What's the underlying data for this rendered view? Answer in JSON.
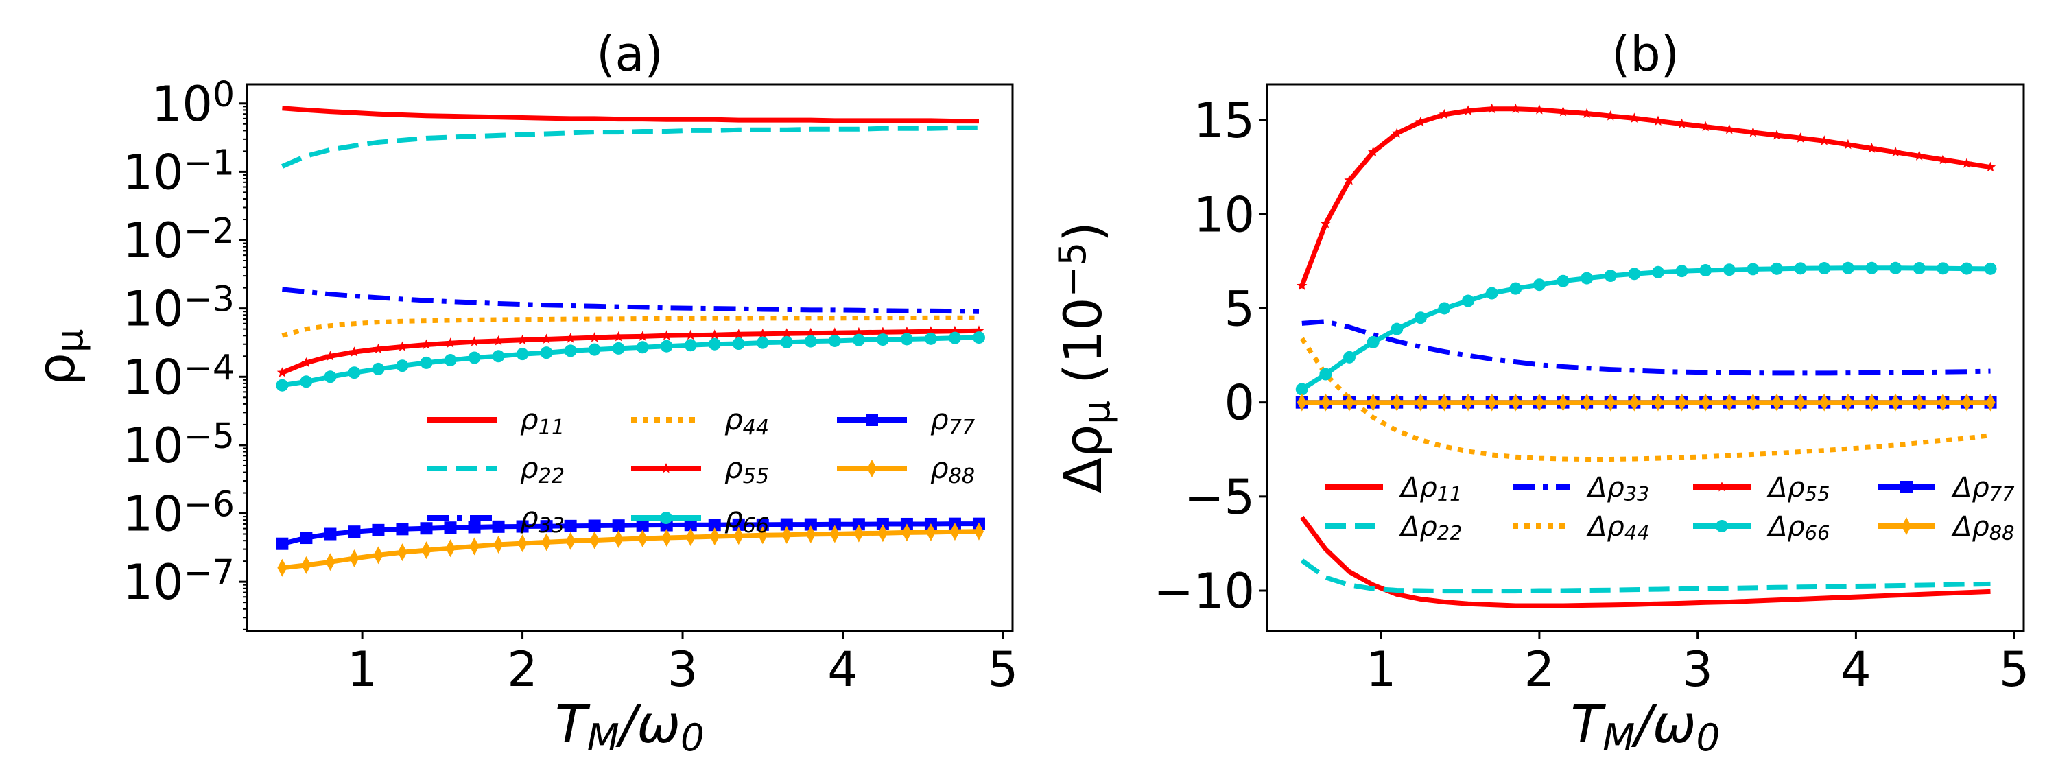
{
  "colors": {
    "red": "#ff0000",
    "cyan": "#00cccc",
    "blue": "#0000ff",
    "orange": "#ffa500"
  },
  "chart_data": [
    {
      "type": "line",
      "title": "(a)",
      "xlabel": "T_{M}/ω_{0}",
      "ylabel": "ρ_{μ}",
      "yscale": "log",
      "xlim": [
        0.28,
        5.06
      ],
      "ylim": [
        1.9e-08,
        1.9
      ],
      "xticks": [
        1,
        2,
        3,
        4,
        5
      ],
      "xtick_labels": [
        "1",
        "2",
        "3",
        "4",
        "5"
      ],
      "yticks": [
        1,
        0.1,
        0.01,
        0.001,
        0.0001,
        1e-05,
        1e-06,
        1e-07
      ],
      "ytick_labels": [
        "10^{0}",
        "10^{−1}",
        "10^{−2}",
        "10^{−3}",
        "10^{−4}",
        "10^{−5}",
        "10^{−6}",
        "10^{−7}"
      ],
      "legend": {
        "placement": "lower-right",
        "columns": 3
      },
      "x": [
        0.5,
        0.65,
        0.8,
        0.95,
        1.1,
        1.25,
        1.4,
        1.55,
        1.7,
        1.85,
        2.0,
        2.15,
        2.3,
        2.45,
        2.6,
        2.75,
        2.9,
        3.05,
        3.2,
        3.35,
        3.5,
        3.65,
        3.8,
        3.95,
        4.1,
        4.25,
        4.4,
        4.55,
        4.7,
        4.85
      ],
      "series": [
        {
          "name": "ρ_{11}",
          "color": "red",
          "style": "solid",
          "marker": "none",
          "values": [
            0.85,
            0.8,
            0.76,
            0.73,
            0.7,
            0.68,
            0.66,
            0.65,
            0.64,
            0.63,
            0.62,
            0.61,
            0.6,
            0.6,
            0.59,
            0.59,
            0.58,
            0.58,
            0.58,
            0.57,
            0.57,
            0.57,
            0.57,
            0.56,
            0.56,
            0.56,
            0.56,
            0.56,
            0.55,
            0.55
          ]
        },
        {
          "name": "ρ_{22}",
          "color": "cyan",
          "style": "dashed",
          "marker": "none",
          "values": [
            0.12,
            0.17,
            0.21,
            0.24,
            0.27,
            0.29,
            0.31,
            0.32,
            0.33,
            0.34,
            0.35,
            0.36,
            0.37,
            0.38,
            0.38,
            0.39,
            0.39,
            0.4,
            0.4,
            0.41,
            0.41,
            0.41,
            0.42,
            0.42,
            0.42,
            0.43,
            0.43,
            0.43,
            0.44,
            0.44
          ]
        },
        {
          "name": "ρ_{33}",
          "color": "blue",
          "style": "dashdot",
          "marker": "none",
          "values": [
            0.0019,
            0.00175,
            0.00162,
            0.00152,
            0.00144,
            0.00137,
            0.00131,
            0.00126,
            0.00122,
            0.00118,
            0.00115,
            0.00112,
            0.0011,
            0.00108,
            0.00106,
            0.00104,
            0.00102,
            0.00101,
            0.001,
            0.00099,
            0.00097,
            0.00096,
            0.00095,
            0.00095,
            0.00094,
            0.00093,
            0.00092,
            0.00092,
            0.00091,
            0.0009
          ]
        },
        {
          "name": "ρ_{44}",
          "color": "orange",
          "style": "dotted",
          "marker": "none",
          "values": [
            0.0004,
            0.0005,
            0.00056,
            0.0006,
            0.00063,
            0.00065,
            0.00066,
            0.00067,
            0.00068,
            0.000685,
            0.00069,
            0.000695,
            0.0007,
            0.0007,
            0.000705,
            0.00071,
            0.00071,
            0.00071,
            0.000715,
            0.000715,
            0.00072,
            0.00072,
            0.00072,
            0.00072,
            0.000725,
            0.000725,
            0.000725,
            0.00073,
            0.00073,
            0.00073
          ]
        },
        {
          "name": "ρ_{55}",
          "color": "red",
          "style": "solid",
          "marker": "star",
          "values": [
            0.000115,
            0.00016,
            0.0002,
            0.00023,
            0.000255,
            0.000275,
            0.000295,
            0.00031,
            0.000325,
            0.000335,
            0.000345,
            0.000355,
            0.000365,
            0.000375,
            0.000385,
            0.00039,
            0.0004,
            0.000405,
            0.00041,
            0.00042,
            0.000425,
            0.00043,
            0.000435,
            0.00044,
            0.000445,
            0.00045,
            0.000455,
            0.00046,
            0.000465,
            0.00047
          ]
        },
        {
          "name": "ρ_{66}",
          "color": "cyan",
          "style": "solid",
          "marker": "circle",
          "values": [
            7.5e-05,
            8.5e-05,
            0.0001,
            0.000115,
            0.00013,
            0.000145,
            0.00016,
            0.000175,
            0.00019,
            0.0002,
            0.000215,
            0.000225,
            0.00024,
            0.00025,
            0.00026,
            0.00027,
            0.00028,
            0.00029,
            0.0003,
            0.000305,
            0.000315,
            0.00032,
            0.00033,
            0.000335,
            0.000345,
            0.00035,
            0.000355,
            0.00036,
            0.00037,
            0.000375
          ]
        },
        {
          "name": "ρ_{77}",
          "color": "blue",
          "style": "solid",
          "marker": "square",
          "values": [
            3.6e-07,
            4.4e-07,
            5e-07,
            5.4e-07,
            5.7e-07,
            5.9e-07,
            6.05e-07,
            6.2e-07,
            6.3e-07,
            6.4e-07,
            6.45e-07,
            6.5e-07,
            6.55e-07,
            6.6e-07,
            6.65e-07,
            6.7e-07,
            6.75e-07,
            6.8e-07,
            6.8e-07,
            6.85e-07,
            6.85e-07,
            6.9e-07,
            6.9e-07,
            6.95e-07,
            6.95e-07,
            7e-07,
            7e-07,
            7e-07,
            7.05e-07,
            7.05e-07
          ]
        },
        {
          "name": "ρ_{88}",
          "color": "orange",
          "style": "solid",
          "marker": "thin_diamond",
          "values": [
            1.6e-07,
            1.75e-07,
            1.95e-07,
            2.2e-07,
            2.45e-07,
            2.7e-07,
            2.9e-07,
            3.1e-07,
            3.3e-07,
            3.5e-07,
            3.65e-07,
            3.8e-07,
            3.95e-07,
            4.05e-07,
            4.2e-07,
            4.3e-07,
            4.4e-07,
            4.5e-07,
            4.6e-07,
            4.7e-07,
            4.8e-07,
            4.85e-07,
            4.95e-07,
            5e-07,
            5.1e-07,
            5.15e-07,
            5.25e-07,
            5.3e-07,
            5.4e-07,
            5.45e-07
          ]
        }
      ]
    },
    {
      "type": "line",
      "title": "(b)",
      "xlabel": "T_{M}/ω_{0}",
      "ylabel": "Δρ_{μ} (10^{−5})",
      "yscale": "linear",
      "xlim": [
        0.28,
        5.06
      ],
      "ylim": [
        -12.15,
        16.9
      ],
      "xticks": [
        1,
        2,
        3,
        4,
        5
      ],
      "xtick_labels": [
        "1",
        "2",
        "3",
        "4",
        "5"
      ],
      "yticks": [
        15,
        10,
        5,
        0,
        -5,
        -10
      ],
      "ytick_labels": [
        "15",
        "10",
        "5",
        "0",
        "−5",
        "−10"
      ],
      "legend": {
        "placement": "lower-center",
        "columns": 4
      },
      "x": [
        0.5,
        0.65,
        0.8,
        0.95,
        1.1,
        1.25,
        1.4,
        1.55,
        1.7,
        1.85,
        2.0,
        2.15,
        2.3,
        2.45,
        2.6,
        2.75,
        2.9,
        3.05,
        3.2,
        3.35,
        3.5,
        3.65,
        3.8,
        3.95,
        4.1,
        4.25,
        4.4,
        4.55,
        4.7,
        4.85
      ],
      "series": [
        {
          "name": "Δρ_{11}",
          "color": "red",
          "style": "solid",
          "marker": "none",
          "values": [
            -6.1,
            -7.8,
            -9.0,
            -9.7,
            -10.2,
            -10.45,
            -10.6,
            -10.7,
            -10.75,
            -10.8,
            -10.8,
            -10.8,
            -10.78,
            -10.76,
            -10.74,
            -10.7,
            -10.67,
            -10.63,
            -10.6,
            -10.55,
            -10.5,
            -10.45,
            -10.4,
            -10.35,
            -10.3,
            -10.25,
            -10.2,
            -10.15,
            -10.1,
            -10.05
          ]
        },
        {
          "name": "Δρ_{22}",
          "color": "cyan",
          "style": "dashed",
          "marker": "none",
          "values": [
            -8.4,
            -9.3,
            -9.7,
            -9.9,
            -9.98,
            -10.0,
            -10.02,
            -10.02,
            -10.02,
            -10.02,
            -10.0,
            -10.0,
            -9.98,
            -9.97,
            -9.95,
            -9.93,
            -9.91,
            -9.89,
            -9.87,
            -9.85,
            -9.83,
            -9.81,
            -9.79,
            -9.77,
            -9.75,
            -9.73,
            -9.71,
            -9.69,
            -9.67,
            -9.65
          ]
        },
        {
          "name": "Δρ_{33}",
          "color": "blue",
          "style": "dashdot",
          "marker": "none",
          "values": [
            4.2,
            4.3,
            4.0,
            3.6,
            3.25,
            2.95,
            2.7,
            2.5,
            2.3,
            2.15,
            2.0,
            1.9,
            1.82,
            1.75,
            1.7,
            1.65,
            1.62,
            1.6,
            1.58,
            1.57,
            1.56,
            1.56,
            1.56,
            1.57,
            1.58,
            1.59,
            1.6,
            1.62,
            1.64,
            1.66
          ]
        },
        {
          "name": "Δρ_{44}",
          "color": "orange",
          "style": "dotted",
          "marker": "none",
          "values": [
            3.4,
            1.5,
            0.2,
            -0.8,
            -1.5,
            -2.0,
            -2.35,
            -2.6,
            -2.78,
            -2.9,
            -2.97,
            -3.0,
            -3.02,
            -3.02,
            -3.0,
            -2.97,
            -2.93,
            -2.88,
            -2.82,
            -2.76,
            -2.7,
            -2.62,
            -2.55,
            -2.46,
            -2.37,
            -2.27,
            -2.15,
            -2.02,
            -1.9,
            -1.75
          ]
        },
        {
          "name": "Δρ_{55}",
          "color": "red",
          "style": "solid",
          "marker": "star",
          "values": [
            6.2,
            9.5,
            11.8,
            13.3,
            14.3,
            14.9,
            15.3,
            15.5,
            15.6,
            15.6,
            15.55,
            15.45,
            15.35,
            15.22,
            15.1,
            14.95,
            14.8,
            14.65,
            14.5,
            14.35,
            14.2,
            14.05,
            13.9,
            13.7,
            13.5,
            13.3,
            13.1,
            12.9,
            12.7,
            12.5
          ]
        },
        {
          "name": "Δρ_{66}",
          "color": "cyan",
          "style": "solid",
          "marker": "circle",
          "values": [
            0.7,
            1.5,
            2.4,
            3.2,
            3.9,
            4.5,
            5.0,
            5.4,
            5.8,
            6.05,
            6.25,
            6.45,
            6.6,
            6.73,
            6.83,
            6.92,
            6.98,
            7.02,
            7.05,
            7.08,
            7.1,
            7.12,
            7.13,
            7.14,
            7.14,
            7.14,
            7.13,
            7.12,
            7.11,
            7.1
          ]
        },
        {
          "name": "Δρ_{77}",
          "color": "blue",
          "style": "solid",
          "marker": "square",
          "values": [
            0,
            0,
            0,
            0,
            0,
            0,
            0,
            0,
            0,
            0,
            0,
            0,
            0,
            0,
            0,
            0,
            0,
            0,
            0,
            0,
            0,
            0,
            0,
            0,
            0,
            0,
            0,
            0,
            0,
            0
          ]
        },
        {
          "name": "Δρ_{88}",
          "color": "orange",
          "style": "solid",
          "marker": "thin_diamond",
          "values": [
            0,
            0,
            0,
            0,
            0,
            0,
            0,
            0,
            0,
            0,
            0,
            0,
            0,
            0,
            0,
            0,
            0,
            0,
            0,
            0,
            0,
            0,
            0,
            0,
            0,
            0,
            0,
            0,
            0,
            0
          ]
        }
      ]
    }
  ]
}
